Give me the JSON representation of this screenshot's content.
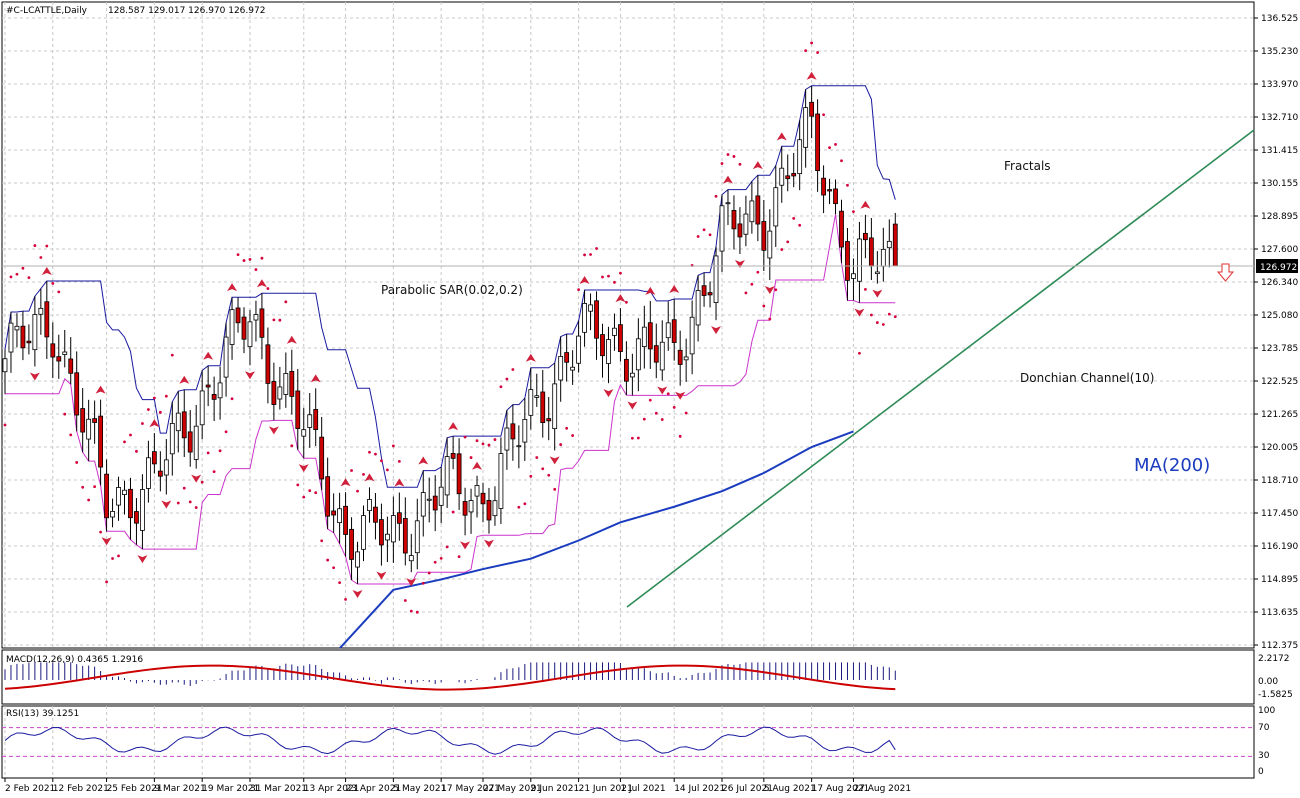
{
  "header": {
    "symbol_label": "#C-LCATTLE,Daily",
    "ohlc": "128.587 129.017 126.970 126.972"
  },
  "price_axis": {
    "labels": [
      "136.525",
      "135.230",
      "133.970",
      "132.710",
      "131.415",
      "130.155",
      "128.895",
      "127.600",
      "126.340",
      "125.080",
      "123.785",
      "122.525",
      "121.265",
      "120.005",
      "118.710",
      "117.450",
      "116.190",
      "114.895",
      "113.635",
      "112.375"
    ],
    "current": "126.972"
  },
  "annotations": {
    "psar": "Parabolic SAR(0.02,0.2)",
    "fractals": "Fractals",
    "donchian": "Donchian Channel(10)",
    "ma": "MA(200)"
  },
  "macd": {
    "label": "MACD(12,26,9) 0.4365 1.2916",
    "axis": [
      "2.2172",
      "0.00",
      "-1.5825"
    ]
  },
  "rsi": {
    "label": "RSI(13) 39.1251",
    "axis": [
      "100",
      "70",
      "30",
      "0"
    ]
  },
  "date_axis": [
    "2 Feb 2021",
    "12 Feb 2021",
    "25 Feb 2021",
    "9 Mar 2021",
    "19 Mar 2021",
    "31 Mar 2021",
    "13 Apr 2021",
    "23 Apr 2021",
    "5 May 2021",
    "17 May 2021",
    "27 May 2021",
    "9 Jun 2021",
    "21 Jun 2021",
    "1 Jul 2021",
    "14 Jul 2021",
    "26 Jul 2021",
    "5 Aug 2021",
    "17 Aug 2021",
    "27 Aug 2021"
  ],
  "colors": {
    "up": "#ffffff",
    "down": "#cc0000",
    "sar": "#d6003c",
    "donchian_upper": "#1a1aa0",
    "donchian_lower": "#cc33cc",
    "ma": "#1a3cbf",
    "trend": "#2e8b57",
    "macd_signal": "#cc0000"
  },
  "chart_data": {
    "type": "candlestick",
    "dates": [
      "2 Feb 2021",
      "12 Feb 2021",
      "25 Feb 2021",
      "9 Mar 2021",
      "19 Mar 2021",
      "31 Mar 2021",
      "13 Apr 2021",
      "23 Apr 2021",
      "5 May 2021",
      "17 May 2021",
      "27 May 2021",
      "9 Jun 2021",
      "21 Jun 2021",
      "1 Jul 2021",
      "14 Jul 2021",
      "26 Jul 2021",
      "5 Aug 2021",
      "17 Aug 2021",
      "27 Aug 2021"
    ],
    "close": [
      123.4,
      124.9,
      117.9,
      118.7,
      121.9,
      125.0,
      120.6,
      116.8,
      116.5,
      118.4,
      118.1,
      121.1,
      124.3,
      124.0,
      123.4,
      128.1,
      129.0,
      132.0,
      126.97
    ],
    "ma200": [
      null,
      null,
      null,
      null,
      null,
      null,
      null,
      null,
      114.5,
      114.9,
      115.3,
      115.7,
      116.4,
      117.1,
      117.7,
      118.3,
      119.0,
      120.0,
      120.6
    ],
    "last_ohlc": {
      "open": 128.587,
      "high": 129.017,
      "low": 126.97,
      "close": 126.972
    },
    "ylim": [
      112.375,
      136.525
    ],
    "macd": {
      "value": 0.4365,
      "signal": 1.2916
    },
    "rsi": {
      "value": 39.1251,
      "levels": [
        70,
        30
      ]
    }
  }
}
